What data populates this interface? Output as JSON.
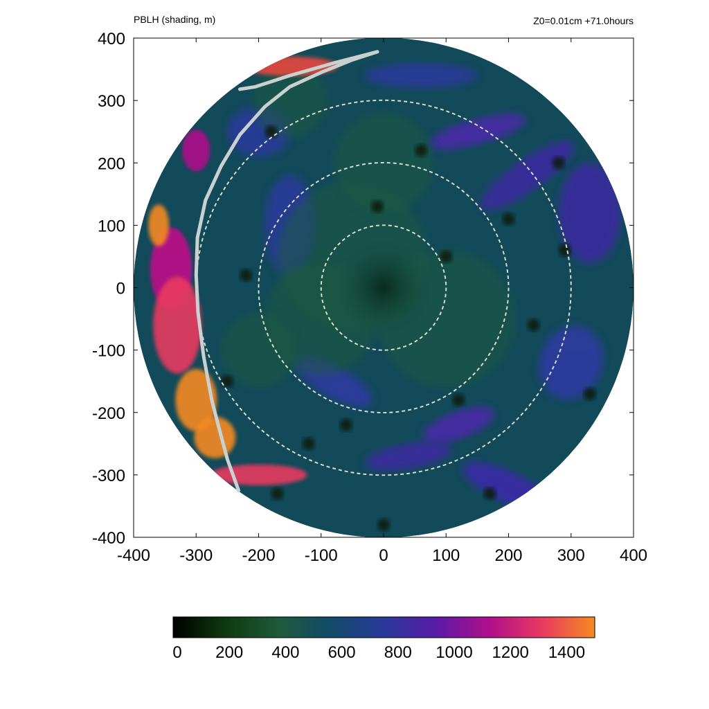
{
  "chart_data": {
    "type": "heatmap",
    "title_left": "PBLH (shading, m)",
    "title_right": "Z0=0.01cm  +71.0hours",
    "xlim": [
      -400,
      400
    ],
    "ylim": [
      -400,
      400
    ],
    "x_ticks": [
      "-400",
      "-300",
      "-200",
      "-100",
      "0",
      "100",
      "200",
      "300",
      "400"
    ],
    "y_ticks": [
      "400",
      "300",
      "200",
      "100",
      "0",
      "-100",
      "-200",
      "-300",
      "-400"
    ],
    "x_tick_values": [
      -400,
      -300,
      -200,
      -100,
      0,
      100,
      200,
      300,
      400
    ],
    "y_tick_values": [
      400,
      300,
      200,
      100,
      0,
      -100,
      -200,
      -300,
      -400
    ],
    "domain_radius": 400,
    "range_rings_radii": [
      100,
      200,
      300
    ],
    "colorbar": {
      "min": 0,
      "max": 1500,
      "tick_labels": [
        "0",
        "200",
        "400",
        "600",
        "800",
        "1000",
        "1200",
        "1400"
      ],
      "tick_values": [
        0,
        200,
        400,
        600,
        800,
        1000,
        1200,
        1400
      ],
      "colors": [
        "#000000",
        "#0f3a0f",
        "#1e5a3a",
        "#124a6a",
        "#2a3a9a",
        "#5a1aa8",
        "#b0108a",
        "#e83a60",
        "#f58a20"
      ]
    },
    "frontal_curve": [
      [
        -10,
        378
      ],
      [
        -50,
        365
      ],
      [
        -100,
        345
      ],
      [
        -150,
        322
      ],
      [
        -190,
        290
      ],
      [
        -230,
        245
      ],
      [
        -260,
        195
      ],
      [
        -285,
        140
      ],
      [
        -298,
        80
      ],
      [
        -300,
        20
      ],
      [
        -297,
        -40
      ],
      [
        -288,
        -110
      ],
      [
        -275,
        -180
      ],
      [
        -262,
        -230
      ],
      [
        -250,
        -275
      ],
      [
        -232,
        -325
      ]
    ],
    "frontal_tail": [
      [
        -10,
        378
      ],
      [
        -80,
        360
      ],
      [
        -150,
        340
      ],
      [
        -205,
        322
      ],
      [
        -230,
        318
      ]
    ],
    "colors": {
      "background": "#ffffff",
      "field_base": "#124a5a",
      "ring": "#d9dcc8",
      "front": "#c8d0d0"
    }
  }
}
